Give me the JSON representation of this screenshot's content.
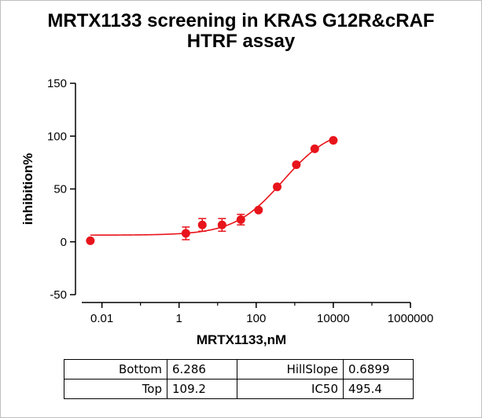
{
  "chart_data": {
    "type": "scatter",
    "title_lines": [
      "MRTX1133 screening in KRAS G12R&cRAF",
      "HTRF assay"
    ],
    "xlabel": "MRTX1133,nM",
    "ylabel": "inhibition%",
    "x_scale": "log",
    "xlim": [
      0.003,
      1000000
    ],
    "ylim": [
      -50,
      150
    ],
    "x_ticks": [
      0.01,
      1,
      100,
      10000,
      1000000
    ],
    "x_tick_labels": [
      "0.01",
      "1",
      "100",
      "10000",
      "1000000"
    ],
    "y_ticks": [
      -50,
      0,
      50,
      100,
      150
    ],
    "y_tick_labels": [
      "-50",
      "0",
      "50",
      "100",
      "150"
    ],
    "marker_color": "#e8141b",
    "grid": false,
    "points": [
      {
        "x": 0.005,
        "y": 1,
        "err": 0
      },
      {
        "x": 1.5,
        "y": 8,
        "err": 6
      },
      {
        "x": 4,
        "y": 16,
        "err": 6
      },
      {
        "x": 13,
        "y": 16,
        "err": 6
      },
      {
        "x": 40,
        "y": 21,
        "err": 5
      },
      {
        "x": 115,
        "y": 30,
        "err": 0
      },
      {
        "x": 350,
        "y": 52,
        "err": 0
      },
      {
        "x": 1100,
        "y": 73,
        "err": 0
      },
      {
        "x": 3300,
        "y": 88,
        "err": 0
      },
      {
        "x": 10000,
        "y": 96,
        "err": 0
      }
    ],
    "fit": {
      "model": "four-parameter logistic",
      "bottom": 6.286,
      "top": 109.2,
      "hill_slope": 0.6899,
      "ic50": 495.4,
      "x_range": [
        0.005,
        10000
      ]
    }
  },
  "params_table": [
    [
      "Bottom",
      "6.286",
      "HillSlope",
      "0.6899"
    ],
    [
      "Top",
      "109.2",
      "IC50",
      "495.4"
    ]
  ]
}
